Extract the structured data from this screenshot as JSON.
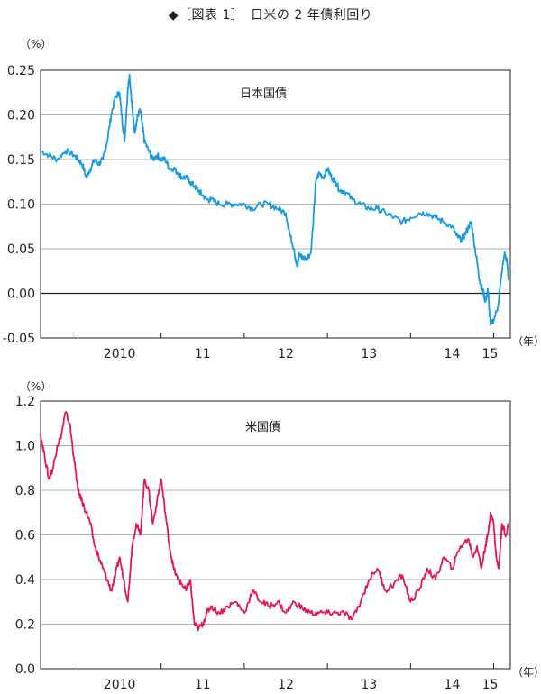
{
  "title": "◆［図表 1］　日米の 2 年債利回り",
  "chart_data": [
    {
      "type": "line",
      "title": "日本国債",
      "y_unit": "（%）",
      "x_unit": "（年）",
      "x_tick_labels": [
        "2010",
        "11",
        "12",
        "13",
        "14",
        "15"
      ],
      "y_tick_labels": [
        "0.25",
        "0.20",
        "0.15",
        "0.10",
        "0.05",
        "0.00",
        "-0.05"
      ],
      "ylim": [
        -0.05,
        0.25
      ],
      "xlim": [
        2009.55,
        2015.2
      ],
      "color": "#1a9be0",
      "series": [
        {
          "x": [
            2009.55,
            2009.65,
            2009.75,
            2009.85,
            2009.95,
            2010.0,
            2010.05,
            2010.1,
            2010.15,
            2010.2,
            2010.25,
            2010.3,
            2010.35,
            2010.4,
            2010.45,
            2010.5,
            2010.53,
            2010.56,
            2010.6,
            2010.62,
            2010.65,
            2010.68,
            2010.7,
            2010.72,
            2010.75,
            2010.78,
            2010.8,
            2010.85,
            2010.9,
            2010.95,
            2011.0,
            2011.05,
            2011.1,
            2011.15,
            2011.2,
            2011.25,
            2011.3,
            2011.35,
            2011.4,
            2011.45,
            2011.5,
            2011.55,
            2011.6,
            2011.7,
            2011.8,
            2011.9,
            2012.0,
            2012.1,
            2012.2,
            2012.3,
            2012.4,
            2012.5,
            2012.55,
            2012.6,
            2012.62,
            2012.64,
            2012.66,
            2012.7,
            2012.75,
            2012.8,
            2012.83,
            2012.86,
            2012.9,
            2012.95,
            2013.0,
            2013.05,
            2013.1,
            2013.15,
            2013.2,
            2013.3,
            2013.4,
            2013.5,
            2013.6,
            2013.7,
            2013.8,
            2013.9,
            2014.0,
            2014.1,
            2014.2,
            2014.3,
            2014.4,
            2014.5,
            2014.55,
            2014.6,
            2014.65,
            2014.7,
            2014.73,
            2014.76,
            2014.8,
            2014.83,
            2014.86,
            2014.88,
            2014.9,
            2014.93,
            2014.96,
            2015.0,
            2015.05,
            2015.1,
            2015.13,
            2015.16,
            2015.18
          ],
          "y": [
            0.16,
            0.155,
            0.15,
            0.16,
            0.155,
            0.15,
            0.145,
            0.13,
            0.14,
            0.15,
            0.145,
            0.15,
            0.17,
            0.2,
            0.22,
            0.225,
            0.195,
            0.17,
            0.23,
            0.245,
            0.21,
            0.18,
            0.19,
            0.2,
            0.205,
            0.185,
            0.17,
            0.16,
            0.15,
            0.155,
            0.15,
            0.15,
            0.14,
            0.14,
            0.135,
            0.13,
            0.13,
            0.125,
            0.12,
            0.115,
            0.11,
            0.105,
            0.105,
            0.1,
            0.1,
            0.1,
            0.1,
            0.095,
            0.1,
            0.1,
            0.095,
            0.09,
            0.065,
            0.05,
            0.035,
            0.03,
            0.045,
            0.04,
            0.04,
            0.045,
            0.08,
            0.125,
            0.135,
            0.13,
            0.14,
            0.13,
            0.125,
            0.115,
            0.115,
            0.105,
            0.1,
            0.095,
            0.095,
            0.09,
            0.085,
            0.08,
            0.085,
            0.09,
            0.09,
            0.085,
            0.08,
            0.075,
            0.065,
            0.06,
            0.065,
            0.075,
            0.08,
            0.06,
            0.035,
            0.015,
            0.005,
            0.0,
            -0.01,
            0.005,
            -0.035,
            -0.03,
            -0.015,
            0.025,
            0.045,
            0.035,
            0.015
          ]
        }
      ]
    },
    {
      "type": "line",
      "title": "米国債",
      "y_unit": "（%）",
      "x_unit": "（年）",
      "x_tick_labels": [
        "2010",
        "11",
        "12",
        "13",
        "14",
        "15"
      ],
      "y_tick_labels": [
        "1.2",
        "1.0",
        "0.8",
        "0.6",
        "0.4",
        "0.2",
        "0.0"
      ],
      "ylim": [
        0.0,
        1.2
      ],
      "xlim": [
        2009.55,
        2015.2
      ],
      "color": "#e0195c",
      "series": [
        {
          "x": [
            2009.55,
            2009.6,
            2009.65,
            2009.7,
            2009.75,
            2009.8,
            2009.85,
            2009.9,
            2009.95,
            2010.0,
            2010.05,
            2010.1,
            2010.15,
            2010.2,
            2010.25,
            2010.3,
            2010.35,
            2010.4,
            2010.45,
            2010.5,
            2010.55,
            2010.6,
            2010.65,
            2010.7,
            2010.75,
            2010.8,
            2010.85,
            2010.9,
            2010.95,
            2011.0,
            2011.05,
            2011.1,
            2011.15,
            2011.2,
            2011.25,
            2011.3,
            2011.35,
            2011.4,
            2011.45,
            2011.5,
            2011.55,
            2011.6,
            2011.7,
            2011.8,
            2011.9,
            2012.0,
            2012.1,
            2012.2,
            2012.3,
            2012.4,
            2012.5,
            2012.6,
            2012.7,
            2012.8,
            2012.9,
            2013.0,
            2013.1,
            2013.2,
            2013.3,
            2013.4,
            2013.5,
            2013.6,
            2013.7,
            2013.8,
            2013.9,
            2014.0,
            2014.1,
            2014.2,
            2014.3,
            2014.4,
            2014.5,
            2014.6,
            2014.7,
            2014.75,
            2014.8,
            2014.85,
            2014.9,
            2014.93,
            2014.96,
            2015.0,
            2015.03,
            2015.06,
            2015.1,
            2015.15,
            2015.18
          ],
          "y": [
            1.05,
            0.95,
            0.85,
            0.9,
            1.0,
            1.05,
            1.15,
            1.1,
            0.95,
            0.8,
            0.75,
            0.7,
            0.65,
            0.55,
            0.5,
            0.45,
            0.4,
            0.35,
            0.42,
            0.5,
            0.4,
            0.3,
            0.55,
            0.65,
            0.6,
            0.85,
            0.8,
            0.65,
            0.75,
            0.85,
            0.7,
            0.55,
            0.45,
            0.4,
            0.38,
            0.35,
            0.4,
            0.2,
            0.18,
            0.2,
            0.25,
            0.28,
            0.25,
            0.28,
            0.3,
            0.25,
            0.35,
            0.3,
            0.28,
            0.3,
            0.25,
            0.3,
            0.27,
            0.25,
            0.25,
            0.25,
            0.25,
            0.25,
            0.22,
            0.3,
            0.4,
            0.45,
            0.35,
            0.38,
            0.42,
            0.3,
            0.35,
            0.45,
            0.4,
            0.5,
            0.45,
            0.55,
            0.58,
            0.5,
            0.55,
            0.45,
            0.55,
            0.6,
            0.7,
            0.65,
            0.5,
            0.45,
            0.65,
            0.6,
            0.65
          ]
        }
      ]
    }
  ]
}
